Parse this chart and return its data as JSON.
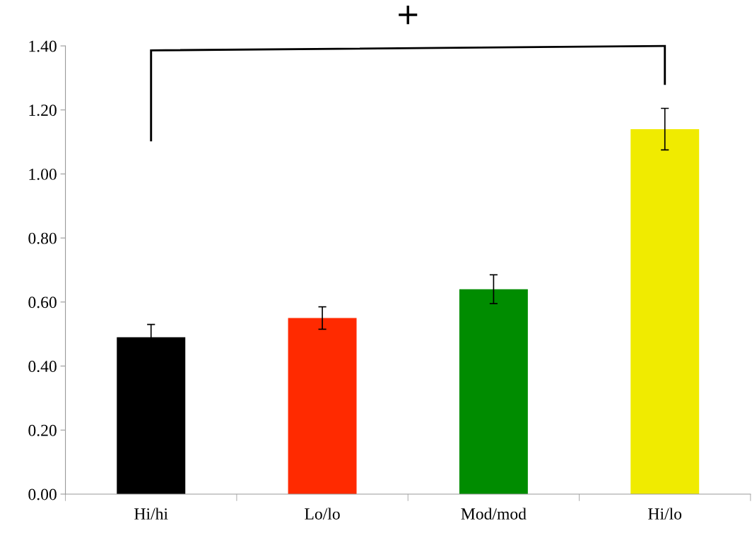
{
  "chart_data": {
    "type": "bar",
    "categories": [
      "Hi/hi",
      "Lo/lo",
      "Mod/mod",
      "Hi/lo"
    ],
    "values": [
      0.49,
      0.55,
      0.64,
      1.14
    ],
    "errors": [
      0.04,
      0.035,
      0.045,
      0.065
    ],
    "colors": [
      "#000000",
      "#ff2a00",
      "#008c00",
      "#f0eb00"
    ],
    "ylim": [
      0,
      1.4
    ],
    "yticks": [
      {
        "value": 0,
        "label": "0.00"
      },
      {
        "value": 0.2,
        "label": "0.20"
      },
      {
        "value": 0.4,
        "label": "0.40"
      },
      {
        "value": 0.6,
        "label": "0.60"
      },
      {
        "value": 0.8,
        "label": "0.80"
      },
      {
        "value": 1.0,
        "label": "1.00"
      },
      {
        "value": 1.2,
        "label": "1.20"
      },
      {
        "value": 1.4,
        "label": "1.40"
      }
    ],
    "grid": false,
    "legend": false,
    "annotations": [
      "+"
    ]
  }
}
